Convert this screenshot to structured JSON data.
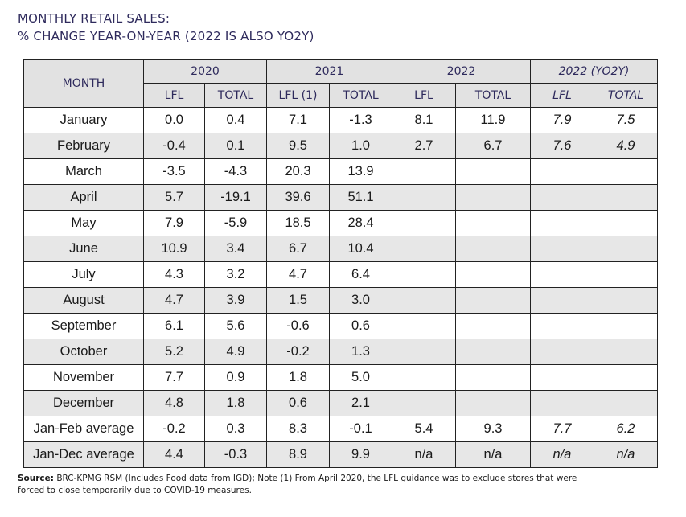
{
  "title": {
    "line1": "MONTHLY RETAIL SALES:",
    "line2": "% CHANGE YEAR-ON-YEAR (2022 IS ALSO YO2Y)"
  },
  "table": {
    "month_header": "MONTH",
    "groups": [
      "2020",
      "2021",
      "2022",
      "2022 (YO2Y)"
    ],
    "subheaders": [
      "LFL",
      "TOTAL",
      "LFL (1)",
      "TOTAL",
      "LFL",
      "TOTAL",
      "LFL",
      "TOTAL"
    ],
    "rows": [
      {
        "month": "January",
        "cells": [
          "0.0",
          "0.4",
          "7.1",
          "-1.3",
          "8.1",
          "11.9",
          "7.9",
          "7.5"
        ]
      },
      {
        "month": "February",
        "cells": [
          "-0.4",
          "0.1",
          "9.5",
          "1.0",
          "2.7",
          "6.7",
          "7.6",
          "4.9"
        ]
      },
      {
        "month": "March",
        "cells": [
          "-3.5",
          "-4.3",
          "20.3",
          "13.9",
          "",
          "",
          "",
          ""
        ]
      },
      {
        "month": "April",
        "cells": [
          "5.7",
          "-19.1",
          "39.6",
          "51.1",
          "",
          "",
          "",
          ""
        ]
      },
      {
        "month": "May",
        "cells": [
          "7.9",
          "-5.9",
          "18.5",
          "28.4",
          "",
          "",
          "",
          ""
        ]
      },
      {
        "month": "June",
        "cells": [
          "10.9",
          "3.4",
          "6.7",
          "10.4",
          "",
          "",
          "",
          ""
        ]
      },
      {
        "month": "July",
        "cells": [
          "4.3",
          "3.2",
          "4.7",
          "6.4",
          "",
          "",
          "",
          ""
        ]
      },
      {
        "month": "August",
        "cells": [
          "4.7",
          "3.9",
          "1.5",
          "3.0",
          "",
          "",
          "",
          ""
        ]
      },
      {
        "month": "September",
        "cells": [
          "6.1",
          "5.6",
          "-0.6",
          "0.6",
          "",
          "",
          "",
          ""
        ]
      },
      {
        "month": "October",
        "cells": [
          "5.2",
          "4.9",
          "-0.2",
          "1.3",
          "",
          "",
          "",
          ""
        ]
      },
      {
        "month": "November",
        "cells": [
          "7.7",
          "0.9",
          "1.8",
          "5.0",
          "",
          "",
          "",
          ""
        ]
      },
      {
        "month": "December",
        "cells": [
          "4.8",
          "1.8",
          "0.6",
          "2.1",
          "",
          "",
          "",
          ""
        ]
      },
      {
        "month": "Jan-Feb average",
        "cells": [
          "-0.2",
          "0.3",
          "8.3",
          "-0.1",
          "5.4",
          "9.3",
          "7.7",
          "6.2"
        ]
      },
      {
        "month": "Jan-Dec average",
        "cells": [
          "4.4",
          "-0.3",
          "8.9",
          "9.9",
          "n/a",
          "n/a",
          "n/a",
          "n/a"
        ]
      }
    ]
  },
  "source": {
    "label": "Source:",
    "text": " BRC-KPMG RSM (Includes Food data from IGD); Note (1) From April 2020, the LFL guidance was to exclude stores that were forced to close temporarily due to COVID-19 measures."
  },
  "colors": {
    "title_text": "#2e2a5c",
    "header_fill": "#e2e2e2",
    "shaded_row_fill": "#e7e7e7",
    "border": "#222222"
  }
}
